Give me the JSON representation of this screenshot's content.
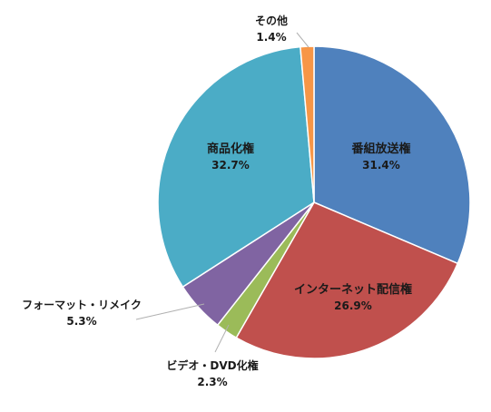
{
  "chart_data": {
    "type": "pie",
    "title": "",
    "start": "12 o'clock, clockwise",
    "slices": [
      {
        "name": "番組放送権",
        "value": 31.4,
        "label": "31.4%",
        "color": "#4F81BD"
      },
      {
        "name": "インターネット配信権",
        "value": 26.9,
        "label": "26.9%",
        "color": "#C0504D"
      },
      {
        "name": "ビデオ・DVD化権",
        "value": 2.3,
        "label": "2.3%",
        "color": "#9BBB59"
      },
      {
        "name": "フォーマット・リメイク",
        "value": 5.3,
        "label": "5.3%",
        "color": "#8064A2"
      },
      {
        "name": "商品化権",
        "value": 32.7,
        "label": "32.7%",
        "color": "#4BACC6"
      },
      {
        "name": "その他",
        "value": 1.4,
        "label": "1.4%",
        "color": "#F79646"
      }
    ]
  }
}
